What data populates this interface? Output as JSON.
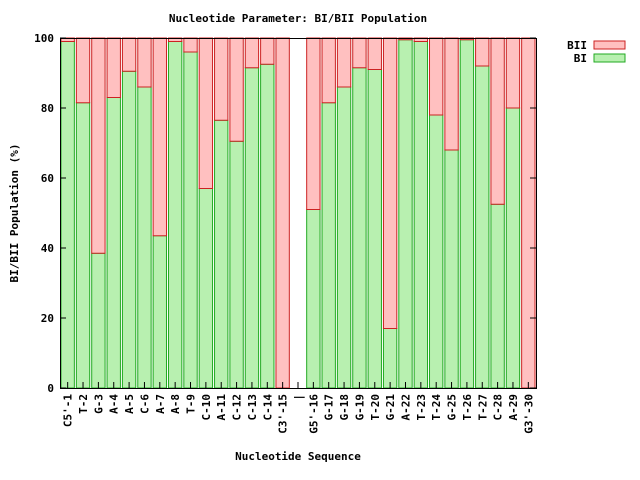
{
  "chart_data": {
    "type": "bar",
    "stacked": true,
    "title": "Nucleotide Parameter: BI/BII Population",
    "xlabel": "Nucleotide Sequence",
    "ylabel": "BI/BII Population (%)",
    "ylim": [
      0,
      100
    ],
    "yticks": [
      "0",
      "20",
      "40",
      "60",
      "80",
      "100"
    ],
    "grid": false,
    "legend_position": "top-right",
    "categories": [
      "C5'-1",
      "T-2",
      "G-3",
      "A-4",
      "A-5",
      "C-6",
      "A-7",
      "A-8",
      "T-9",
      "C-10",
      "A-11",
      "C-12",
      "C-13",
      "C-14",
      "C3'-15",
      "|",
      "G5'-16",
      "G-17",
      "G-18",
      "G-19",
      "T-20",
      "G-21",
      "A-22",
      "T-23",
      "T-24",
      "G-25",
      "T-26",
      "T-27",
      "C-28",
      "A-29",
      "G3'-30"
    ],
    "series": [
      {
        "name": "BI",
        "color": "#b8f0b0",
        "edge": "#22aa22",
        "values": [
          99,
          81.5,
          38.5,
          83,
          90.5,
          86,
          43.5,
          99,
          96,
          57,
          76.5,
          70.5,
          91.5,
          92.5,
          0,
          null,
          51,
          81.5,
          86,
          91.5,
          91,
          17,
          99.5,
          99,
          78,
          68,
          99.5,
          92,
          52.5,
          80,
          0
        ]
      },
      {
        "name": "BII",
        "color": "#ffc0c0",
        "edge": "#cc2222",
        "values": [
          1,
          18.5,
          61.5,
          17,
          9.5,
          14,
          56.5,
          1,
          4,
          43,
          23.5,
          29.5,
          8.5,
          7.5,
          100,
          null,
          49,
          18.5,
          14,
          8.5,
          9,
          83,
          0.5,
          1,
          22,
          32,
          0.5,
          8,
          47.5,
          20,
          100
        ]
      }
    ],
    "legend_order": [
      "BII",
      "BI"
    ]
  }
}
